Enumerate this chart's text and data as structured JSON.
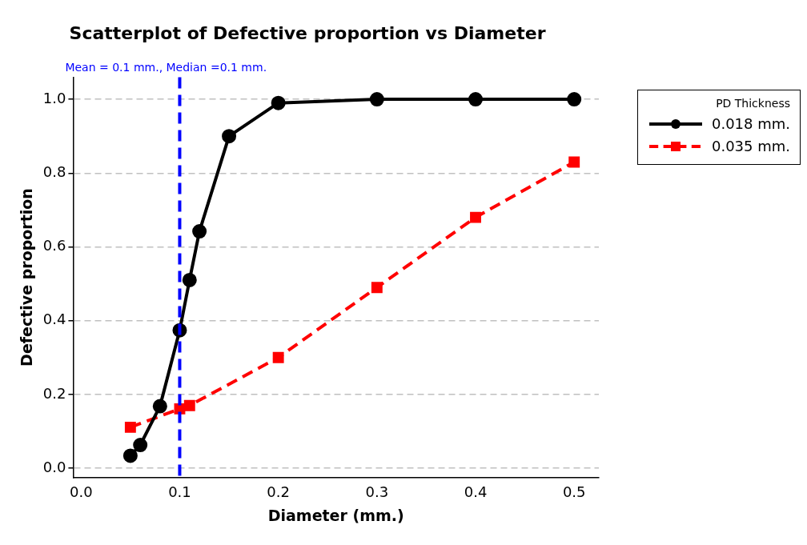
{
  "chart_data": {
    "type": "line",
    "title": "Scatterplot of Defective proportion vs Diameter",
    "xlabel": "Diameter (mm.)",
    "ylabel": "Defective proportion",
    "legend_title": "PD Thickness",
    "series": [
      {
        "name": "0.018 mm.",
        "color": "#000000",
        "marker": "circle",
        "line_style": "solid",
        "x": [
          0.05,
          0.06,
          0.08,
          0.1,
          0.11,
          0.12,
          0.15,
          0.2,
          0.3,
          0.4,
          0.5
        ],
        "values": [
          0.034,
          0.063,
          0.168,
          0.374,
          0.51,
          0.642,
          0.9,
          0.99,
          1.0,
          1.0,
          1.0
        ]
      },
      {
        "name": "0.035 mm.",
        "color": "#ff0000",
        "marker": "square",
        "line_style": "dashed",
        "x": [
          0.05,
          0.1,
          0.11,
          0.2,
          0.3,
          0.4,
          0.5
        ],
        "values": [
          0.111,
          0.161,
          0.17,
          0.3,
          0.49,
          0.68,
          0.83
        ]
      }
    ],
    "xlim": [
      -0.008,
      0.525
    ],
    "xticks": [
      {
        "value": 0,
        "label": "0.0"
      },
      0.1,
      0.2,
      0.3,
      0.4,
      0.5
    ],
    "ylim": [
      -0.025,
      1.06
    ],
    "yticks": [
      {
        "value": 0,
        "label": "0.0"
      },
      0.2,
      0.4,
      0.6,
      0.8,
      {
        "value": 1,
        "label": "1.0"
      }
    ],
    "ref_lines": [
      {
        "axis": "x",
        "value": 0.1,
        "label": "Mean = 0.1 mm., Median =0.1 mm.",
        "color": "#0000ff",
        "line_style": "dashed"
      }
    ],
    "grid": "y",
    "legend": "top right"
  }
}
